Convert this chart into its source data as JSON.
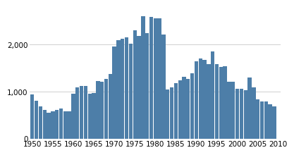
{
  "years": [
    1950,
    1951,
    1952,
    1953,
    1954,
    1955,
    1956,
    1957,
    1958,
    1959,
    1960,
    1961,
    1962,
    1963,
    1964,
    1965,
    1966,
    1967,
    1968,
    1969,
    1970,
    1971,
    1972,
    1973,
    1974,
    1975,
    1976,
    1977,
    1978,
    1979,
    1980,
    1981,
    1982,
    1983,
    1984,
    1985,
    1986,
    1987,
    1988,
    1989,
    1990,
    1991,
    1992,
    1993,
    1994,
    1995,
    1996,
    1997,
    1998,
    1999,
    2000,
    2001,
    2002,
    2003,
    2004,
    2005,
    2006,
    2007,
    2008,
    2009
  ],
  "values": [
    950,
    810,
    690,
    620,
    550,
    580,
    620,
    650,
    590,
    580,
    960,
    1100,
    1130,
    1130,
    960,
    970,
    1230,
    1220,
    1270,
    1380,
    1960,
    2090,
    2130,
    2160,
    2020,
    2300,
    2180,
    2600,
    2250,
    2580,
    2560,
    2550,
    2220,
    1050,
    1100,
    1190,
    1250,
    1320,
    1280,
    1390,
    1640,
    1710,
    1680,
    1580,
    1850,
    1590,
    1520,
    1540,
    1210,
    1210,
    1060,
    1060,
    1040,
    1300,
    1090,
    840,
    790,
    790,
    740,
    690
  ],
  "bar_color": "#4d7ea8",
  "background_color": "#ffffff",
  "grid_color": "#d0d0d0",
  "yticks": [
    0,
    1000,
    2000
  ],
  "ytick_labels": [
    "0",
    "1,000",
    "2,000"
  ],
  "xticks": [
    1950,
    1955,
    1960,
    1965,
    1970,
    1975,
    1980,
    1985,
    1990,
    1995,
    2000,
    2005,
    2010
  ],
  "ylim": [
    0,
    2800
  ],
  "xlim": [
    1949.4,
    2010.6
  ],
  "bar_width": 0.92
}
